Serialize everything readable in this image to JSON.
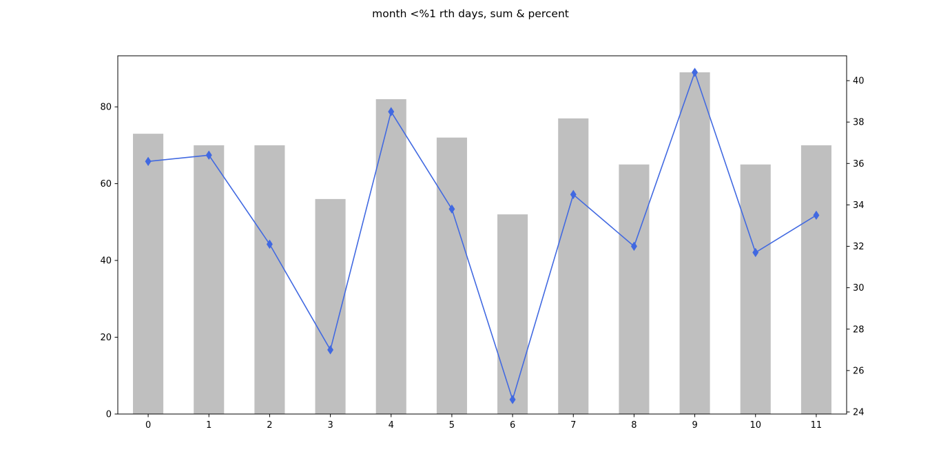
{
  "chart_data": {
    "type": "bar",
    "title": "month <%1 rth days, sum & percent",
    "xlabel": "",
    "ylabel": "",
    "categories": [
      "0",
      "1",
      "2",
      "3",
      "4",
      "5",
      "6",
      "7",
      "8",
      "9",
      "10",
      "11"
    ],
    "series": [
      {
        "type": "bar",
        "axis": "left",
        "color": "#bfbfbf",
        "values": [
          73,
          70,
          70,
          56,
          82,
          72,
          52,
          77,
          65,
          89,
          65,
          70
        ]
      },
      {
        "type": "line",
        "axis": "right",
        "color": "#4169e1",
        "marker": "diamond",
        "values": [
          36.1,
          36.4,
          32.1,
          27.0,
          38.5,
          33.8,
          24.6,
          34.5,
          32.0,
          40.4,
          31.7,
          33.5
        ]
      }
    ],
    "ylim_left": [
      0,
      93.3
    ],
    "ylim_right": [
      23.9,
      41.2
    ],
    "yticks_left": [
      0,
      20,
      40,
      60,
      80
    ],
    "yticks_right": [
      24,
      26,
      28,
      30,
      32,
      34,
      36,
      38,
      40
    ],
    "grid": false,
    "legend": "none"
  }
}
